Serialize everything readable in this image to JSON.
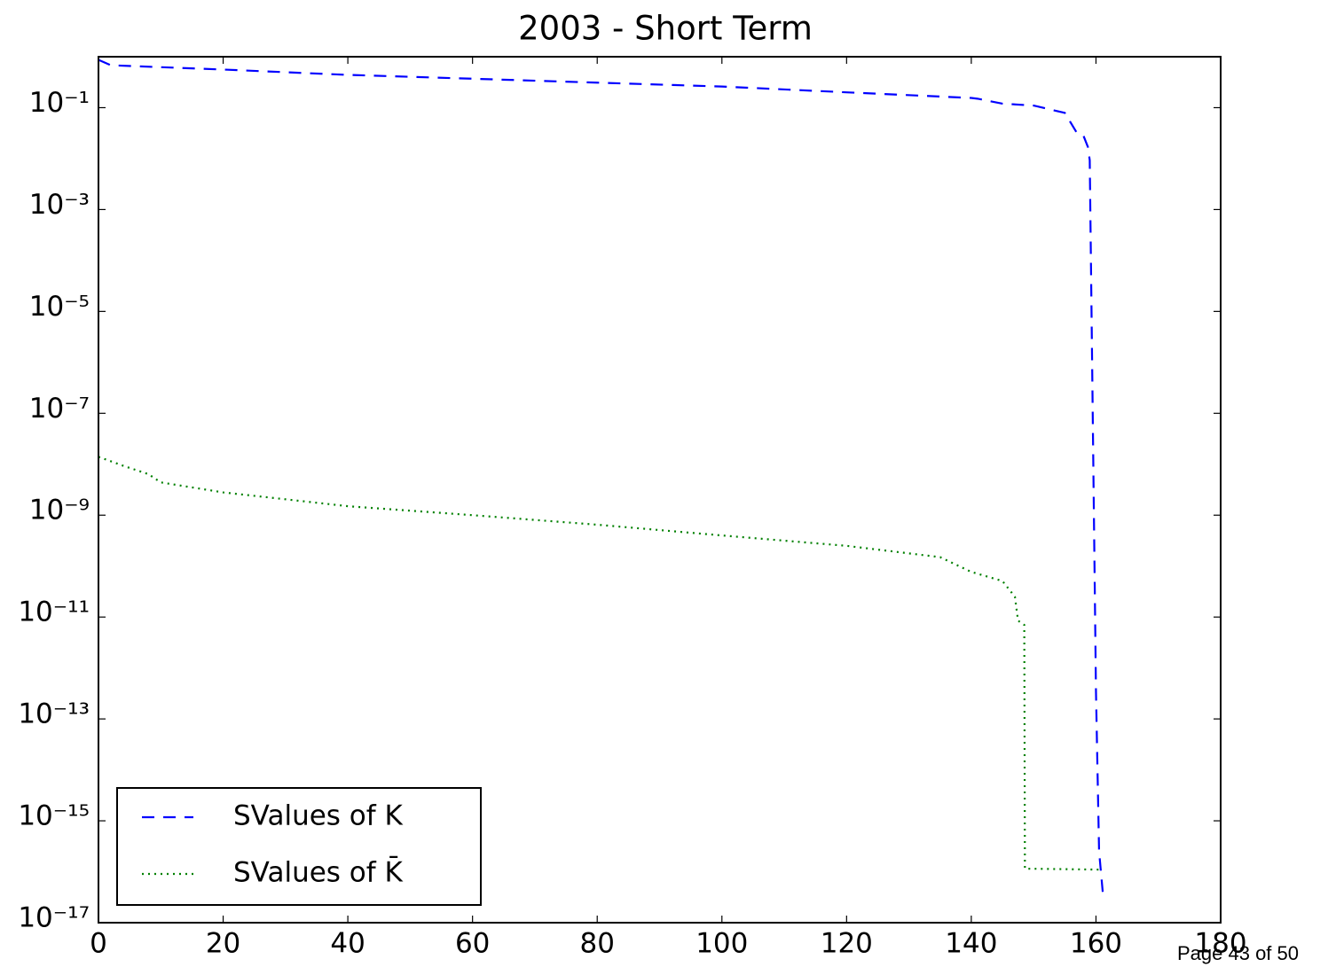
{
  "chart_data": {
    "type": "line",
    "title": "2003 - Short Term",
    "yscale": "log",
    "xlim": [
      0,
      180
    ],
    "xticks": [
      0,
      20,
      40,
      60,
      80,
      100,
      120,
      140,
      160,
      180
    ],
    "ylim": [
      1e-17,
      1
    ],
    "yticks": [
      {
        "value": 1e-17,
        "label": "10⁻¹⁷"
      },
      {
        "value": 1e-15,
        "label": "10⁻¹⁵"
      },
      {
        "value": 1e-13,
        "label": "10⁻¹³"
      },
      {
        "value": 1e-11,
        "label": "10⁻¹¹"
      },
      {
        "value": 1e-09,
        "label": "10⁻⁹"
      },
      {
        "value": 1e-07,
        "label": "10⁻⁷"
      },
      {
        "value": 1e-05,
        "label": "10⁻⁵"
      },
      {
        "value": 0.001,
        "label": "10⁻³"
      },
      {
        "value": 0.1,
        "label": "10⁻¹"
      }
    ],
    "legend": "lower left",
    "series": [
      {
        "name": "SValues of K",
        "color": "#0000ff",
        "style": "dashed",
        "x": [
          0,
          2,
          20,
          40,
          60,
          80,
          100,
          120,
          140,
          141,
          145,
          150,
          155,
          157,
          158,
          158.7,
          159,
          159.2,
          160,
          160.5,
          161.2
        ],
        "values": [
          0.87,
          0.68,
          0.56,
          0.44,
          0.37,
          0.31,
          0.26,
          0.2,
          0.155,
          0.15,
          0.12,
          0.11,
          0.079,
          0.031,
          0.028,
          0.017,
          0.0093,
          8e-05,
          3.5e-13,
          2.5e-16,
          2.8e-17
        ]
      },
      {
        "name": "SValues of K̄",
        "color": "#008000",
        "style": "dotted",
        "x": [
          0,
          4,
          8,
          10,
          20,
          40,
          60,
          80,
          100,
          120,
          135,
          140,
          145,
          147,
          147.5,
          148.5,
          148.6,
          161
        ],
        "values": [
          1.4e-08,
          9.3e-09,
          6.4e-09,
          4.4e-09,
          2.8e-09,
          1.5e-09,
          1e-09,
          6.5e-10,
          4e-10,
          2.5e-10,
          1.5e-10,
          7.7e-11,
          5.1e-11,
          2.5e-11,
          8.5e-12,
          7e-12,
          1.15e-16,
          1.1e-16
        ]
      }
    ]
  },
  "footer": "Page 43 of 50"
}
